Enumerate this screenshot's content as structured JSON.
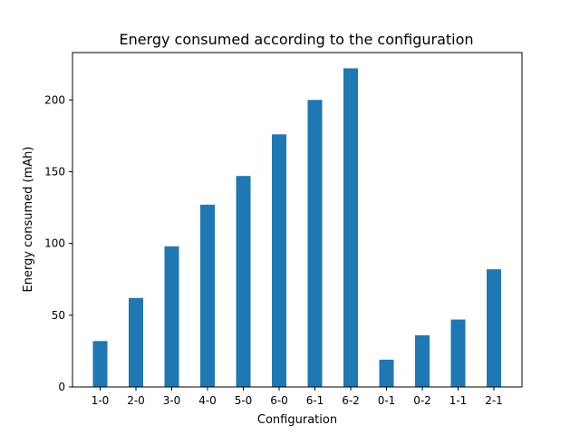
{
  "chart_data": {
    "type": "bar",
    "title": "Energy consumed according to the configuration",
    "xlabel": "Configuration",
    "ylabel": "Energy consumed (mAh)",
    "categories": [
      "1-0",
      "2-0",
      "3-0",
      "4-0",
      "5-0",
      "6-0",
      "6-1",
      "6-2",
      "0-1",
      "0-2",
      "1-1",
      "2-1"
    ],
    "values": [
      32,
      62,
      98,
      127,
      147,
      176,
      200,
      222,
      19,
      36,
      47,
      82
    ],
    "ylim": [
      0,
      233
    ],
    "yticks": [
      0,
      50,
      100,
      150,
      200
    ],
    "grid": false,
    "colors": {
      "bar": "#1f77b4",
      "axis": "#000000",
      "background": "#ffffff"
    }
  }
}
